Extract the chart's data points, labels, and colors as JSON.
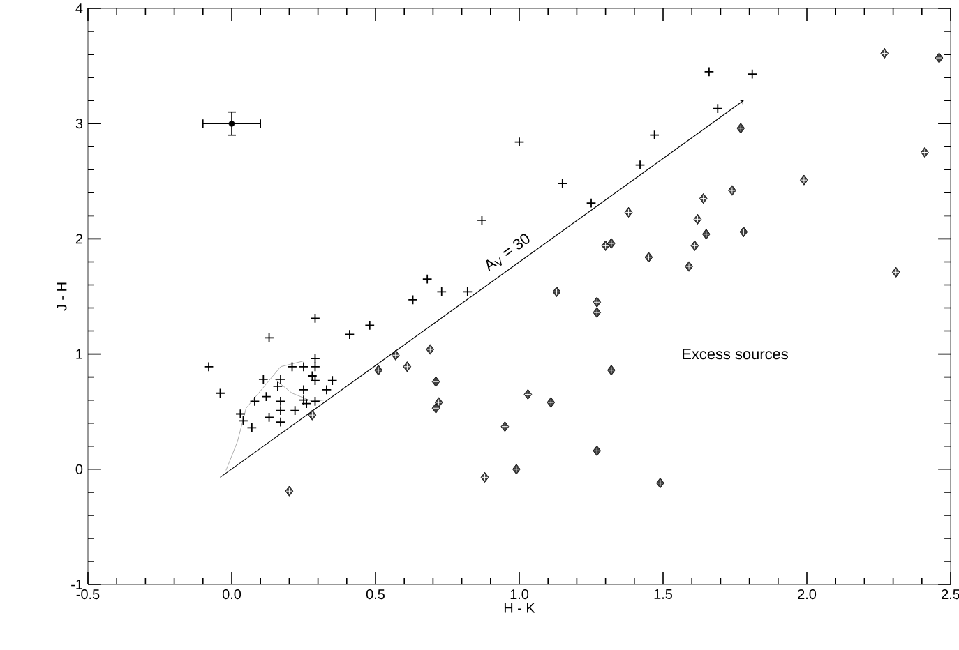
{
  "chart_data": {
    "type": "scatter",
    "xlabel": "H - K",
    "ylabel": "J - H",
    "xlim": [
      -0.5,
      2.5
    ],
    "ylim": [
      -1,
      4
    ],
    "xticks": [
      -0.5,
      {
        "value": 0,
        "label": "0.0"
      },
      0.5,
      {
        "value": 1,
        "label": "1.0"
      },
      1.5,
      {
        "value": 2,
        "label": "2.0"
      },
      2.5
    ],
    "yticks": [
      -1,
      0,
      1,
      2,
      3,
      4
    ],
    "grid": false,
    "annotations": [
      {
        "text": "A$_{V}$ = 30",
        "x": 1.0,
        "y": 1.74
      },
      "Excess sources"
    ],
    "series": [
      {
        "marker": "cross",
        "color": "#000000",
        "x": [
          -0.08,
          -0.04,
          0.13,
          0.29,
          0.41,
          0.48,
          0.29,
          0.29,
          0.28,
          0.29,
          0.35,
          0.33,
          0.25,
          0.21,
          0.17,
          0.11,
          0.16,
          0.25,
          0.12,
          0.08,
          0.17,
          0.25,
          0.29,
          0.17,
          0.03,
          0.04,
          0.07,
          0.13,
          0.17,
          0.22,
          0.26,
          0.63,
          0.68,
          0.73,
          0.82,
          0.87,
          1.15,
          1.0,
          1.25,
          1.42,
          1.47,
          1.69,
          1.66,
          1.81
        ],
        "values": [
          0.89,
          0.66,
          1.14,
          1.31,
          1.17,
          1.25,
          0.96,
          0.89,
          0.81,
          0.77,
          0.77,
          0.69,
          0.89,
          0.89,
          0.78,
          0.78,
          0.72,
          0.69,
          0.63,
          0.59,
          0.59,
          0.6,
          0.59,
          0.51,
          0.48,
          0.42,
          0.36,
          0.45,
          0.41,
          0.51,
          0.57,
          1.47,
          1.65,
          1.54,
          1.54,
          2.16,
          2.48,
          2.84,
          2.31,
          2.64,
          2.9,
          3.13,
          3.45,
          3.43
        ]
      },
      {
        "marker": "diamond",
        "color": "#000000",
        "x": [
          1.13,
          1.27,
          1.27,
          1.32,
          0.69,
          0.57,
          0.61,
          0.51,
          0.71,
          0.72,
          0.71,
          1.03,
          1.11,
          0.95,
          0.99,
          0.88,
          1.27,
          1.49,
          1.3,
          1.32,
          1.38,
          1.45,
          1.59,
          1.61,
          1.65,
          1.62,
          1.64,
          1.74,
          1.78,
          1.77,
          1.99,
          2.27,
          2.46,
          2.41,
          2.31,
          0.2,
          0.28
        ],
        "values": [
          1.54,
          1.45,
          1.36,
          0.86,
          1.04,
          0.99,
          0.89,
          0.86,
          0.76,
          0.58,
          0.53,
          0.65,
          0.58,
          0.37,
          0.0,
          -0.07,
          0.16,
          -0.12,
          1.94,
          1.96,
          2.23,
          1.84,
          1.76,
          1.94,
          2.04,
          2.17,
          2.35,
          2.42,
          2.06,
          2.96,
          2.51,
          3.61,
          3.57,
          2.75,
          1.71,
          -0.19,
          0.47
        ]
      },
      {
        "type": "line",
        "color": "#000000",
        "x": [
          -0.04,
          1.78
        ],
        "values": [
          -0.07,
          3.2
        ]
      },
      {
        "type": "line",
        "color": "#999999",
        "x": [
          -0.02,
          0.02,
          0.05,
          0.11,
          0.17,
          0.25
        ],
        "values": [
          -0.01,
          0.24,
          0.53,
          0.71,
          0.89,
          0.94
        ]
      },
      {
        "type": "line",
        "color": "#999999",
        "x": [
          0.15,
          0.21,
          0.28,
          0.32
        ],
        "values": [
          0.78,
          0.66,
          0.59,
          0.6
        ]
      },
      {
        "color": "#000000",
        "x": [
          0.0
        ],
        "values": [
          3.0
        ],
        "errors": [
          0.1
        ],
        "xerrors": [
          0.1
        ]
      }
    ]
  }
}
